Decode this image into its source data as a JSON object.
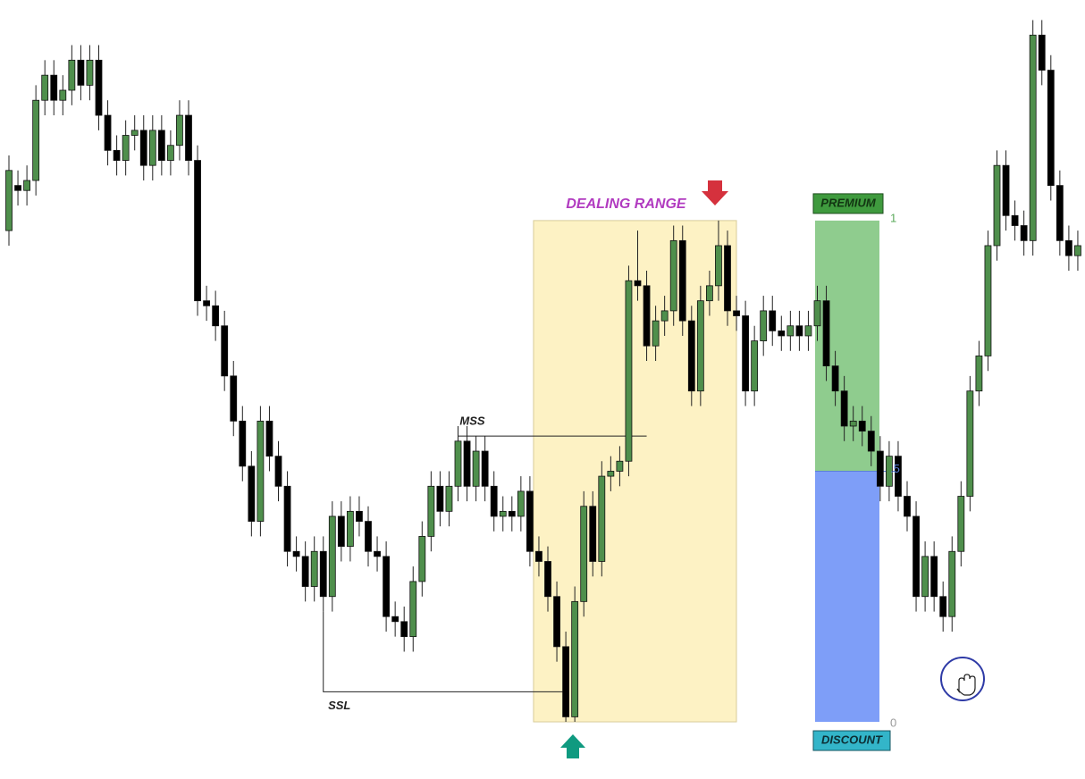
{
  "chart_data": {
    "type": "candlestick",
    "ylim": [
      -0.114,
      1.44
    ],
    "up_color": "#4f8f4c",
    "down_color": "#000000",
    "open": [
      0.98,
      1.07,
      1.06,
      1.08,
      1.24,
      1.29,
      1.24,
      1.26,
      1.32,
      1.27,
      1.32,
      1.21,
      1.14,
      1.12,
      1.17,
      1.18,
      1.11,
      1.18,
      1.12,
      1.15,
      1.21,
      1.12,
      0.84,
      0.83,
      0.79,
      0.69,
      0.6,
      0.51,
      0.4,
      0.6,
      0.53,
      0.47,
      0.34,
      0.33,
      0.27,
      0.34,
      0.25,
      0.41,
      0.35,
      0.42,
      0.4,
      0.34,
      0.33,
      0.21,
      0.2,
      0.17,
      0.28,
      0.37,
      0.47,
      0.42,
      0.47,
      0.56,
      0.47,
      0.54,
      0.47,
      0.41,
      0.42,
      0.41,
      0.46,
      0.34,
      0.32,
      0.25,
      0.15,
      0.01,
      0.24,
      0.43,
      0.32,
      0.49,
      0.5,
      0.52,
      0.88,
      0.87,
      0.75,
      0.8,
      0.82,
      0.96,
      0.8,
      0.66,
      0.84,
      0.87,
      0.95,
      0.82,
      0.81,
      0.66,
      0.76,
      0.82,
      0.78,
      0.77,
      0.79,
      0.77,
      0.79,
      0.84,
      0.71,
      0.66,
      0.59,
      0.6,
      0.58,
      0.54,
      0.47,
      0.53,
      0.45,
      0.41,
      0.25,
      0.33,
      0.25,
      0.21,
      0.34,
      0.45,
      0.66,
      0.73,
      0.95,
      1.11,
      1.01,
      0.99,
      0.96,
      1.37,
      1.3,
      1.07,
      0.96,
      0.93
    ],
    "high": [
      1.13,
      1.1,
      1.11,
      1.27,
      1.32,
      1.32,
      1.29,
      1.35,
      1.35,
      1.35,
      1.35,
      1.24,
      1.17,
      1.2,
      1.21,
      1.21,
      1.21,
      1.21,
      1.18,
      1.24,
      1.24,
      1.15,
      0.87,
      0.86,
      0.82,
      0.72,
      0.63,
      0.54,
      0.63,
      0.63,
      0.56,
      0.5,
      0.37,
      0.36,
      0.37,
      0.37,
      0.44,
      0.44,
      0.45,
      0.45,
      0.43,
      0.37,
      0.36,
      0.24,
      0.23,
      0.31,
      0.4,
      0.5,
      0.5,
      0.5,
      0.59,
      0.59,
      0.57,
      0.57,
      0.5,
      0.45,
      0.45,
      0.49,
      0.49,
      0.37,
      0.35,
      0.28,
      0.18,
      0.27,
      0.46,
      0.46,
      0.52,
      0.53,
      0.55,
      0.91,
      0.98,
      0.9,
      0.83,
      0.85,
      0.99,
      0.99,
      0.83,
      0.87,
      0.9,
      1.0,
      0.98,
      0.85,
      0.84,
      0.79,
      0.85,
      0.85,
      0.81,
      0.82,
      0.82,
      0.82,
      0.87,
      0.87,
      0.74,
      0.69,
      0.63,
      0.63,
      0.61,
      0.57,
      0.56,
      0.56,
      0.48,
      0.44,
      0.36,
      0.36,
      0.28,
      0.37,
      0.48,
      0.69,
      0.76,
      0.98,
      1.14,
      1.14,
      1.04,
      1.02,
      1.4,
      1.4,
      1.33,
      1.1,
      0.99,
      0.98
    ],
    "low": [
      0.95,
      1.03,
      1.03,
      1.05,
      1.21,
      1.21,
      1.21,
      1.23,
      1.24,
      1.24,
      1.18,
      1.11,
      1.09,
      1.09,
      1.14,
      1.08,
      1.08,
      1.09,
      1.09,
      1.12,
      1.09,
      0.81,
      0.8,
      0.76,
      0.66,
      0.57,
      0.48,
      0.37,
      0.37,
      0.5,
      0.44,
      0.31,
      0.3,
      0.24,
      0.24,
      0.22,
      0.22,
      0.32,
      0.32,
      0.37,
      0.31,
      0.3,
      0.18,
      0.17,
      0.14,
      0.14,
      0.25,
      0.34,
      0.39,
      0.39,
      0.44,
      0.44,
      0.44,
      0.44,
      0.38,
      0.38,
      0.38,
      0.38,
      0.31,
      0.29,
      0.22,
      0.12,
      0.0,
      0.0,
      0.21,
      0.29,
      0.29,
      0.46,
      0.47,
      0.49,
      0.84,
      0.72,
      0.72,
      0.77,
      0.79,
      0.77,
      0.63,
      0.63,
      0.81,
      0.84,
      0.79,
      0.78,
      0.63,
      0.63,
      0.73,
      0.75,
      0.74,
      0.74,
      0.74,
      0.74,
      0.76,
      0.68,
      0.63,
      0.56,
      0.56,
      0.55,
      0.51,
      0.44,
      0.44,
      0.42,
      0.38,
      0.22,
      0.22,
      0.22,
      0.18,
      0.18,
      0.31,
      0.42,
      0.63,
      0.7,
      0.92,
      0.98,
      0.96,
      0.93,
      0.93,
      1.27,
      1.04,
      0.93,
      0.9,
      0.9
    ],
    "close": [
      1.1,
      1.06,
      1.08,
      1.24,
      1.29,
      1.24,
      1.26,
      1.32,
      1.27,
      1.32,
      1.21,
      1.14,
      1.12,
      1.17,
      1.18,
      1.11,
      1.18,
      1.12,
      1.15,
      1.21,
      1.12,
      0.84,
      0.83,
      0.79,
      0.69,
      0.6,
      0.51,
      0.4,
      0.6,
      0.53,
      0.47,
      0.34,
      0.33,
      0.27,
      0.34,
      0.25,
      0.41,
      0.35,
      0.42,
      0.4,
      0.34,
      0.33,
      0.21,
      0.2,
      0.17,
      0.28,
      0.37,
      0.47,
      0.42,
      0.47,
      0.56,
      0.47,
      0.54,
      0.47,
      0.41,
      0.42,
      0.41,
      0.46,
      0.34,
      0.32,
      0.25,
      0.15,
      0.01,
      0.24,
      0.43,
      0.32,
      0.49,
      0.5,
      0.52,
      0.88,
      0.87,
      0.75,
      0.8,
      0.82,
      0.96,
      0.8,
      0.66,
      0.84,
      0.87,
      0.95,
      0.82,
      0.81,
      0.66,
      0.76,
      0.82,
      0.78,
      0.77,
      0.79,
      0.77,
      0.79,
      0.84,
      0.71,
      0.66,
      0.59,
      0.6,
      0.58,
      0.54,
      0.47,
      0.53,
      0.45,
      0.41,
      0.25,
      0.33,
      0.25,
      0.21,
      0.34,
      0.45,
      0.66,
      0.73,
      0.95,
      1.11,
      1.01,
      0.99,
      0.96,
      1.37,
      1.3,
      1.07,
      0.96,
      0.93,
      0.95
    ],
    "dealing_range": {
      "label": "DEALING RANGE",
      "color": "#fdf2c4"
    },
    "fib_levels": [
      {
        "value": 1,
        "label": "1"
      },
      {
        "value": 0.5,
        "label": ".5"
      },
      {
        "value": 0,
        "label": "0"
      }
    ],
    "zones": [
      {
        "label": "PREMIUM",
        "color": "#8fcc8e"
      },
      {
        "label": "DISCOUNT",
        "color": "#7e9ef8"
      }
    ],
    "annotations": [
      {
        "text": "MSS",
        "value": 0.57
      },
      {
        "text": "SSL",
        "value": 0.06
      }
    ]
  }
}
